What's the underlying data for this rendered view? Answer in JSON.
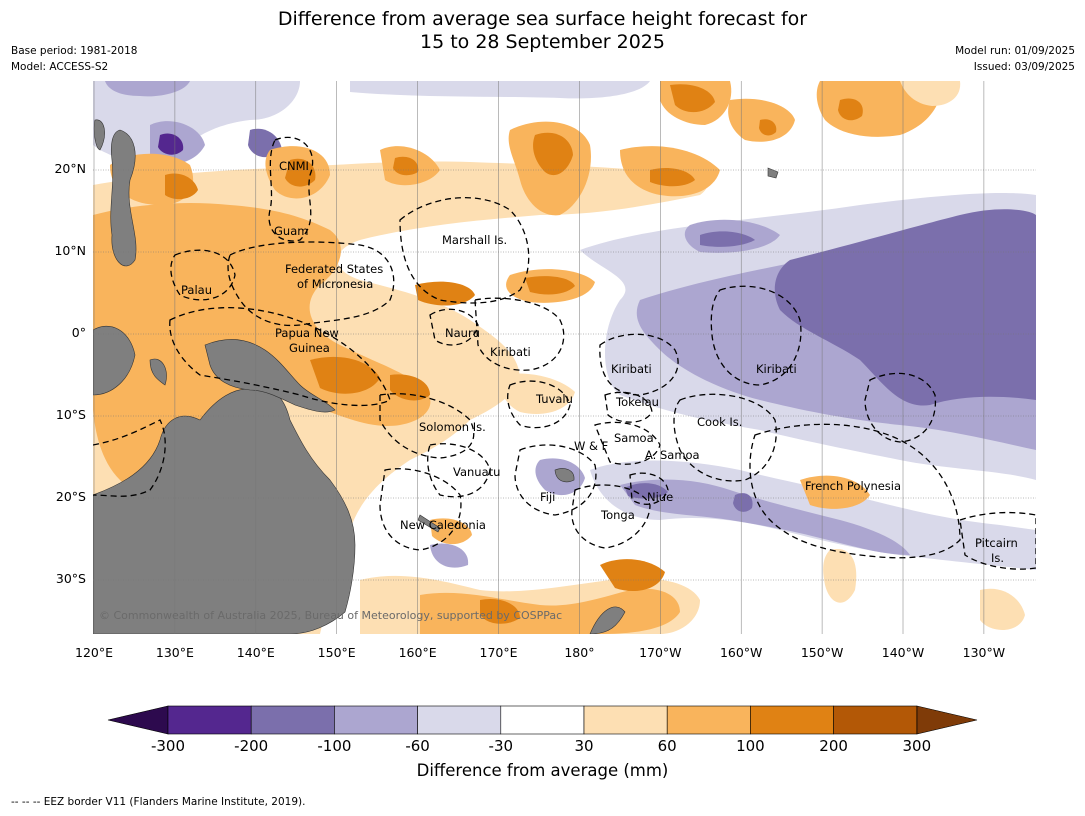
{
  "title": {
    "line1": "Difference from average sea surface height forecast for",
    "line2": "15 to 28 September 2025"
  },
  "meta_left": {
    "base_period": "Base period: 1981-2018",
    "model": "Model: ACCESS-S2"
  },
  "meta_right": {
    "model_run": "Model run: 01/09/2025",
    "issued": "Issued: 03/09/2025"
  },
  "map": {
    "longitude_ticks": [
      "120°E",
      "130°E",
      "140°E",
      "150°E",
      "160°E",
      "170°E",
      "180°",
      "170°W",
      "160°W",
      "150°W",
      "140°W",
      "130°W"
    ],
    "latitude_ticks": [
      "20°N",
      "10°N",
      "0°",
      "10°S",
      "20°S",
      "30°S"
    ],
    "region_labels": {
      "cnmi": "CNMI",
      "guam": "Guam",
      "marshall": "Marshall Is.",
      "fsm_line1": "Federated States",
      "fsm_line2": "of Micronesia",
      "palau": "Palau",
      "png_line1": "Papua New",
      "png_line2": "Guinea",
      "nauru": "Nauru",
      "kiribati_west": "Kiribati",
      "kiribati_central": "Kiribati",
      "kiribati_east": "Kiribati",
      "tuvalu": "Tuvalu",
      "tokelau": "Tokelau",
      "solomon": "Solomon Is.",
      "samoa": "Samoa",
      "wf": "W & F",
      "asamoa": "A. Samoa",
      "cook": "Cook Is.",
      "vanuatu": "Vanuatu",
      "fiji": "Fiji",
      "niue": "Niue",
      "tonga": "Tonga",
      "french_polynesia": "French Polynesia",
      "new_caledonia": "New Caledonia",
      "pitcairn_line1": "Pitcairn",
      "pitcairn_line2": "Is."
    },
    "copyright": "© Commonwealth of Australia 2025, Bureau of Meteorology, supported by COSPPac"
  },
  "colorbar": {
    "ticks": [
      "-300",
      "-200",
      "-100",
      "-60",
      "-30",
      "30",
      "60",
      "100",
      "200",
      "300"
    ],
    "colors": {
      "below_min": "#2d0a4e",
      "b1": "#54278f",
      "b2": "#7b6fac",
      "b3": "#aca6d0",
      "b4": "#d9d9ea",
      "b5": "#ffffff",
      "b6": "#fddfb3",
      "b7": "#f9b45c",
      "b8": "#e08214",
      "b9": "#b35806",
      "above_max": "#7f3b08"
    },
    "label": "Difference from average (mm)"
  },
  "footnote": "-- -- -- EEZ border V11 (Flanders Marine Institute, 2019)."
}
